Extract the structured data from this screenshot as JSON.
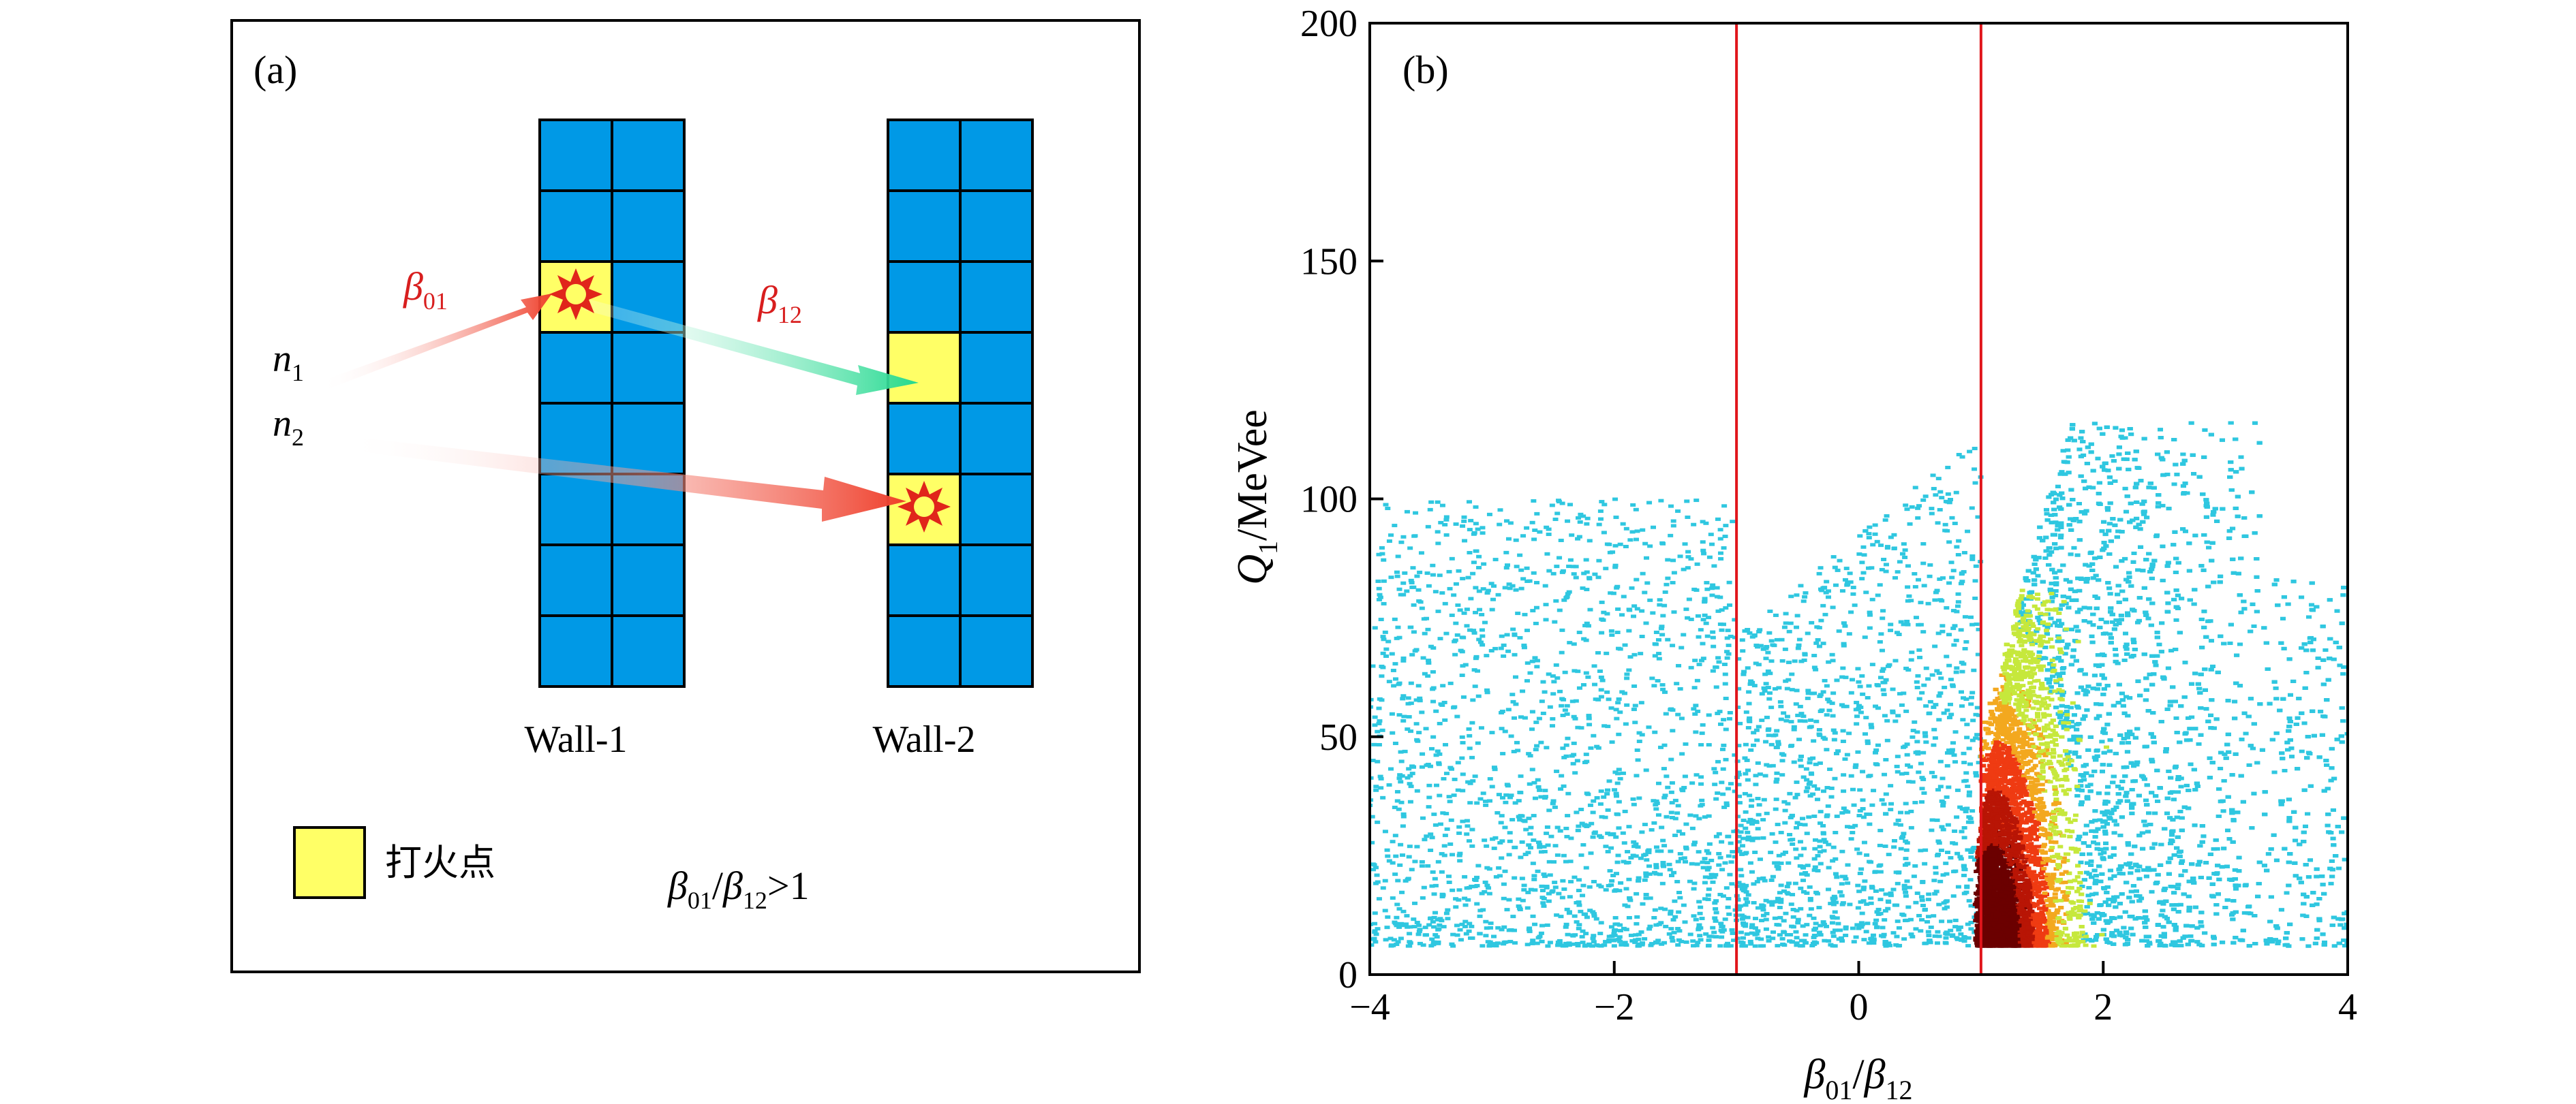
{
  "panel_a": {
    "label": "(a)",
    "walls": [
      {
        "name": "Wall-1",
        "rows": 8,
        "cols": 2
      },
      {
        "name": "Wall-2",
        "rows": 8,
        "cols": 2
      }
    ],
    "neutrons": [
      {
        "base": "n",
        "sub": "1"
      },
      {
        "base": "n",
        "sub": "2"
      }
    ],
    "beta_01": {
      "base": "β",
      "sub": "01"
    },
    "beta_12": {
      "base": "β",
      "sub": "12"
    },
    "legend_label": "打火点",
    "condition": {
      "b1": "β",
      "s1": "01",
      "slash": "/",
      "b2": "β",
      "s2": "12",
      "tail": ">1"
    },
    "colors": {
      "cell": "#0099e6",
      "hit": "#ffff66",
      "burst": "#e0251b",
      "arrow_red": "#ef3e2a",
      "arrow_green": "#22d98f"
    }
  },
  "panel_b": {
    "label": "(b)",
    "colors": {
      "low": "#2fc7e0",
      "mid": "#c6e83c",
      "high": "#ef3b12",
      "peak": "#6b0000",
      "cut_line": "#e0151b"
    }
  },
  "chart_data": {
    "type": "heatmap",
    "xlabel": {
      "b1": "β",
      "s1": "01",
      "slash": "/",
      "b2": "β",
      "s2": "12"
    },
    "ylabel": {
      "base": "Q",
      "sub": "1",
      "unit": "/MeVee"
    },
    "xlim": [
      -4,
      4
    ],
    "ylim": [
      0,
      200
    ],
    "xticks": [
      -4,
      -2,
      0,
      2,
      4
    ],
    "xtick_labels": [
      "−4",
      "−2",
      "0",
      "2",
      "4"
    ],
    "yticks": [
      0,
      50,
      100,
      150,
      200
    ],
    "ytick_labels": [
      "0",
      "50",
      "100",
      "150",
      "200"
    ],
    "vlines": [
      -1,
      1
    ],
    "q_threshold": 6,
    "regions": [
      {
        "x_range": [
          -4,
          -1
        ],
        "q_range": [
          6,
          100
        ],
        "density": "low"
      },
      {
        "x_range": [
          -1,
          1
        ],
        "q_range": [
          6,
          115
        ],
        "density": "low"
      },
      {
        "x_range": [
          1,
          4
        ],
        "q_range": [
          6,
          115
        ],
        "density": "high",
        "peak_x": 1.05,
        "peak_q": 6
      }
    ],
    "grid": false
  }
}
